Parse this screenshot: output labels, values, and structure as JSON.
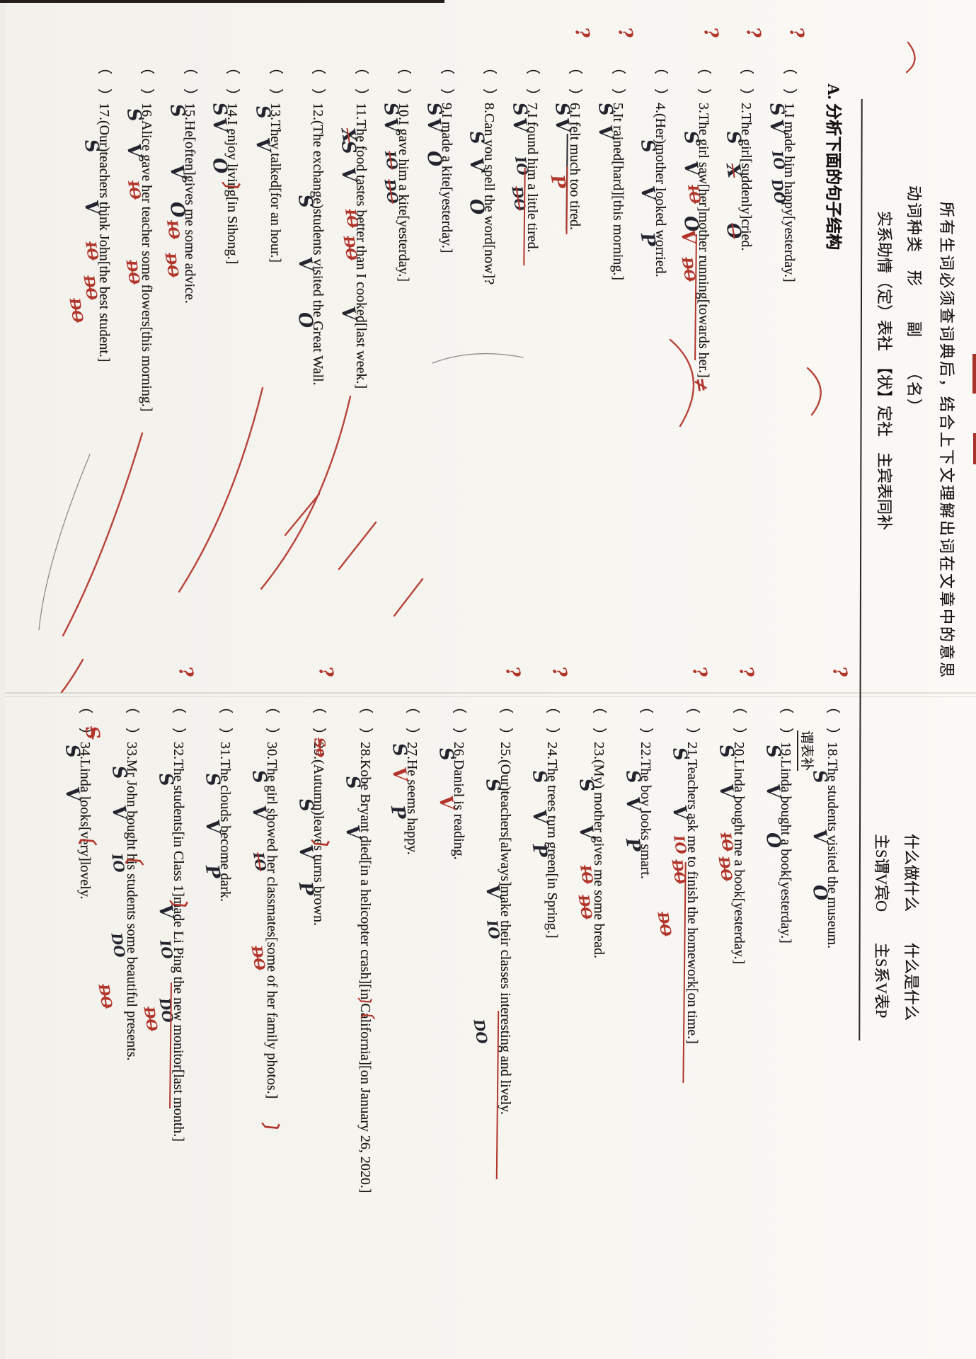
{
  "header": {
    "line1": "所有生词必须查词典后，结合上下文理解出词在文章中的意思",
    "line2_left": "动词种类　形　　副　　（名）",
    "line2_right": "什么做什么　　什么是什么",
    "line3_left": "实系助情（定）表社　【状】定社　主宾表同补",
    "line3_right": "主S谓V宾O　　主S系V表P",
    "fragment": "谓表补",
    "section_title": "A. 分析下面的句子结构"
  },
  "ink_colors": {
    "student_ink": "#23242e",
    "teacher_red": "#b2352b",
    "print": "#1c1a18"
  },
  "sentences": [
    {
      "n": 1,
      "col": "L",
      "text": "I made him happy[yesterday.]",
      "margin": "?",
      "marks": [
        [
          "S",
          60,
          "k"
        ],
        [
          "V",
          84,
          "k"
        ],
        [
          "IO",
          128,
          "k"
        ],
        [
          "DO",
          168,
          "k"
        ]
      ],
      "under": []
    },
    {
      "n": 2,
      "col": "L",
      "text": "The girl[suddenly]cried.",
      "margin": "?",
      "marks": [
        [
          "S",
          100,
          "k"
        ],
        [
          "X",
          146,
          "ks"
        ],
        [
          "O",
          230,
          "ks"
        ]
      ],
      "under": []
    },
    {
      "n": 3,
      "col": "L",
      "text": "The girl saw[her]mother running[towards her.]",
      "margin": "?",
      "marks": [
        [
          "S",
          100,
          "k"
        ],
        [
          "V",
          143,
          "k"
        ],
        [
          "O",
          220,
          "k"
        ],
        [
          "IO",
          176,
          "rs",
          20
        ],
        [
          "V",
          240,
          "r",
          26
        ],
        [
          "DO",
          278,
          "rs",
          28
        ],
        [
          "≠",
          448,
          "r",
          8
        ]
      ],
      "under": [
        [
          246,
          178,
          "r"
        ]
      ]
    },
    {
      "n": 4,
      "col": "L",
      "text": "(Her)mother looked worried.",
      "marks": [
        [
          "S",
          112,
          "k"
        ],
        [
          "V",
          178,
          "k"
        ],
        [
          "P",
          244,
          "k"
        ]
      ],
      "under": []
    },
    {
      "n": 5,
      "col": "L",
      "text": "It rained[hard][this morning.]",
      "margin": "?",
      "marks": [
        [
          "S",
          60,
          "k"
        ],
        [
          "V",
          92,
          "k"
        ]
      ],
      "under": []
    },
    {
      "n": 6,
      "col": "L",
      "text": "I felt much too tired.",
      "margin": "?",
      "marks": [
        [
          "S",
          60,
          "k"
        ],
        [
          "V",
          82,
          "k"
        ],
        [
          "P",
          162,
          "r",
          28
        ]
      ],
      "under": [
        [
          104,
          136,
          "k"
        ],
        [
          150,
          96,
          "r"
        ]
      ]
    },
    {
      "n": 7,
      "col": "L",
      "text": "I found him a little tired.",
      "marks": [
        [
          "S",
          60,
          "k"
        ],
        [
          "V",
          82,
          "k"
        ],
        [
          "IO",
          136,
          "k"
        ],
        [
          "DO",
          178,
          "ks",
          26
        ]
      ],
      "under": [
        [
          152,
          138,
          "r"
        ]
      ]
    },
    {
      "n": 8,
      "col": "L",
      "text": "Can you spell the word[now]?",
      "marks": [
        [
          "S",
          100,
          "k"
        ],
        [
          "V",
          138,
          "k"
        ],
        [
          "O",
          196,
          "k"
        ]
      ],
      "under": []
    },
    {
      "n": 9,
      "col": "L",
      "text": "I made a kite[yesterday.]",
      "marks": [
        [
          "S",
          60,
          "k"
        ],
        [
          "V",
          82,
          "k"
        ],
        [
          "O",
          128,
          "k"
        ]
      ],
      "under": []
    },
    {
      "n": 10,
      "col": "L",
      "text": "I gave him a kite[yesterday.]",
      "marks": [
        [
          "S",
          60,
          "k"
        ],
        [
          "V",
          82,
          "k"
        ],
        [
          "IO",
          128,
          "ks",
          24
        ],
        [
          "DO",
          168,
          "ks",
          24
        ]
      ],
      "under": []
    },
    {
      "n": 11,
      "col": "L",
      "text": "The food tastes better than I cooked[last week.]",
      "marks": [
        [
          "X",
          96,
          "ks"
        ],
        [
          "S",
          114,
          "k"
        ],
        [
          "V",
          152,
          "k"
        ],
        [
          "IO",
          210,
          "rs",
          20
        ],
        [
          "DO",
          248,
          "rs",
          22
        ],
        [
          "V",
          348,
          "k"
        ]
      ],
      "under": []
    },
    {
      "n": 12,
      "col": "L",
      "text": "(The exchange)students visited the Great Wall.",
      "marks": [
        [
          "S",
          190,
          "k"
        ],
        [
          "V",
          278,
          "k"
        ],
        [
          "O",
          356,
          "k"
        ]
      ],
      "under": []
    },
    {
      "n": 13,
      "col": "L",
      "text": "They talked[for an hour.]",
      "marks": [
        [
          "S",
          64,
          "k"
        ],
        [
          "V",
          110,
          "k"
        ]
      ],
      "under": []
    },
    {
      "n": 14,
      "col": "L",
      "text": "I enjoy living[in Sihong.]",
      "marks": [
        [
          "S",
          60,
          "k"
        ],
        [
          "V",
          82,
          "k"
        ],
        [
          "O",
          138,
          "k"
        ],
        [
          "〕",
          170,
          "r",
          6
        ]
      ],
      "under": []
    },
    {
      "n": 15,
      "col": "L",
      "text": "He[often]gives me some advice.",
      "marks": [
        [
          "S",
          62,
          "k"
        ],
        [
          "V",
          148,
          "k"
        ],
        [
          "O",
          200,
          "k"
        ],
        [
          "IO",
          226,
          "rs",
          30
        ],
        [
          "DO",
          272,
          "rs",
          32
        ]
      ],
      "under": []
    },
    {
      "n": 16,
      "col": "L",
      "text": "Alice gave her teacher some flowers[this morning.]",
      "marks": [
        [
          "S",
          68,
          "k"
        ],
        [
          "V",
          118,
          "k"
        ],
        [
          "IO",
          170,
          "rs",
          24
        ],
        [
          "DO",
          282,
          "rs",
          26
        ]
      ],
      "under": []
    },
    {
      "n": 17,
      "col": "L",
      "text": "(Our)teachers think John[the best student.]",
      "marks": [
        [
          "S",
          112,
          "k"
        ],
        [
          "V",
          198,
          "k"
        ],
        [
          "IO",
          256,
          "rs",
          24
        ],
        [
          "DO",
          304,
          "rs",
          26
        ],
        [
          "DO",
          336,
          "rs",
          46
        ]
      ],
      "under": []
    },
    {
      "n": 18,
      "col": "R",
      "text": "The students visited the museum.",
      "margin": "?",
      "marks": [
        [
          "S",
          100,
          "k"
        ],
        [
          "V",
          184,
          "k"
        ],
        [
          "O",
          262,
          "k"
        ]
      ],
      "under": []
    },
    {
      "n": 19,
      "col": "R",
      "text": "Linda bought a book[yesterday.]",
      "marks": [
        [
          "S",
          64,
          "k"
        ],
        [
          "V",
          120,
          "k"
        ],
        [
          "O",
          188,
          "k"
        ]
      ],
      "under": []
    },
    {
      "n": 20,
      "col": "R",
      "text": "Linda bought me a book[yesterday.]",
      "margin": "?",
      "marks": [
        [
          "S",
          64,
          "k"
        ],
        [
          "V",
          120,
          "k"
        ],
        [
          "IO",
          188,
          "rs",
          24
        ],
        [
          "DO",
          222,
          "rs",
          26
        ]
      ],
      "under": []
    },
    {
      "n": 21,
      "col": "R",
      "text": "Teachers ask me to finish the homework[on time.]",
      "margin": "?",
      "marks": [
        [
          "S",
          68,
          "k"
        ],
        [
          "V",
          150,
          "k"
        ],
        [
          "IO",
          192,
          "r",
          24
        ],
        [
          "DO",
          226,
          "rs",
          26
        ],
        [
          "DO",
          300,
          "rs",
          46
        ]
      ],
      "under": [
        [
          230,
          312,
          "r"
        ]
      ]
    },
    {
      "n": 22,
      "col": "R",
      "text": "The boy looks smart.",
      "marks": [
        [
          "S",
          100,
          "k"
        ],
        [
          "V",
          138,
          "k"
        ],
        [
          "P",
          196,
          "k"
        ]
      ],
      "under": []
    },
    {
      "n": 23,
      "col": "R",
      "text": "(My) mother gives me some bread.",
      "marks": [
        [
          "S",
          112,
          "k"
        ],
        [
          "V",
          178,
          "k"
        ],
        [
          "IO",
          234,
          "rs",
          24
        ],
        [
          "DO",
          276,
          "rs",
          26
        ]
      ],
      "under": []
    },
    {
      "n": 24,
      "col": "R",
      "text": "The trees turn green[in Spring.]",
      "margin": "?",
      "marks": [
        [
          "S",
          100,
          "k"
        ],
        [
          "V",
          156,
          "k"
        ],
        [
          "P",
          204,
          "k"
        ]
      ],
      "under": []
    },
    {
      "n": 25,
      "col": "R",
      "text": "(Our)teachers[always]make their classes interesting and lively.",
      "margin": "?",
      "marks": [
        [
          "S",
          112,
          "k"
        ],
        [
          "V",
          262,
          "k"
        ],
        [
          "IO",
          312,
          "k",
          24
        ],
        [
          "DO",
          452,
          "k",
          42
        ]
      ],
      "under": [
        [
          440,
          238,
          "r"
        ]
      ]
    },
    {
      "n": 26,
      "col": "R",
      "text": "Daniel is reading.",
      "marks": [
        [
          "S",
          68,
          "k"
        ],
        [
          "V",
          136,
          "r",
          22
        ]
      ],
      "under": []
    },
    {
      "n": 27,
      "col": "R",
      "text": "He seems happy.",
      "marks": [
        [
          "S",
          62,
          "k"
        ],
        [
          "V",
          96,
          "r",
          22
        ],
        [
          "P",
          150,
          "k",
          24
        ]
      ],
      "under": []
    },
    {
      "n": 28,
      "col": "R",
      "text": "Kobe Bryant died[in a helicopter crash][in California][on January 26, 2020.]",
      "marks": [
        [
          "S",
          108,
          "k"
        ],
        [
          "V",
          178,
          "k"
        ],
        [
          "〕〔",
          420,
          "r",
          6
        ]
      ],
      "under": []
    },
    {
      "n": 29,
      "col": "R",
      "text": "(Autumn)leaves turns brown.",
      "margin": "?",
      "marks": [
        [
          "So",
          54,
          "rs",
          4
        ],
        [
          "S",
          140,
          "k"
        ],
        [
          "V",
          206,
          "k"
        ],
        [
          "P",
          258,
          "k"
        ],
        [
          "〕",
          196,
          "r",
          2
        ]
      ],
      "under": []
    },
    {
      "n": 30,
      "col": "R",
      "text": "The girl showed her classmates[some of her family photos.]",
      "marks": [
        [
          "S",
          100,
          "k"
        ],
        [
          "V",
          150,
          "k"
        ],
        [
          "IO",
          216,
          "ks",
          24
        ],
        [
          "DO",
          348,
          "rs",
          26
        ],
        [
          "〕",
          596,
          "r",
          6
        ]
      ],
      "under": []
    },
    {
      "n": 31,
      "col": "R",
      "text": "The clouds become dark.",
      "marks": [
        [
          "S",
          104,
          "k"
        ],
        [
          "V",
          170,
          "k"
        ],
        [
          "P",
          234,
          "k"
        ]
      ],
      "under": []
    },
    {
      "n": 32,
      "col": "R",
      "text": "The students[in Class 1]made Li Ping the new monitor[last month.]",
      "margin": "?",
      "marks": [
        [
          "S",
          104,
          "k"
        ],
        [
          "V",
          290,
          "k"
        ],
        [
          "IO",
          340,
          "k",
          24
        ],
        [
          "DO",
          422,
          "k",
          24
        ],
        [
          "〕",
          282,
          "r",
          4
        ],
        [
          "DO",
          434,
          "rs",
          46
        ]
      ],
      "under": [
        [
          400,
          178,
          "r"
        ]
      ]
    },
    {
      "n": 33,
      "col": "R",
      "text": "Mr John bought his students some beautiful presents.",
      "marks": [
        [
          "S",
          94,
          "k"
        ],
        [
          "V",
          150,
          "k"
        ],
        [
          "〔",
          206,
          "r",
          4
        ],
        [
          "IO",
          218,
          "k",
          26
        ],
        [
          "DO",
          330,
          "k",
          26
        ],
        [
          "DO",
          402,
          "rs",
          44
        ]
      ],
      "under": []
    },
    {
      "n": 34,
      "col": "R",
      "text": "Linda looks[very]lovely.",
      "marks": [
        [
          "S",
          64,
          "k"
        ],
        [
          "V",
          124,
          "k"
        ],
        [
          "〔",
          178,
          "r",
          4
        ],
        [
          "S",
          38,
          "rs",
          -6
        ]
      ],
      "under": []
    }
  ]
}
